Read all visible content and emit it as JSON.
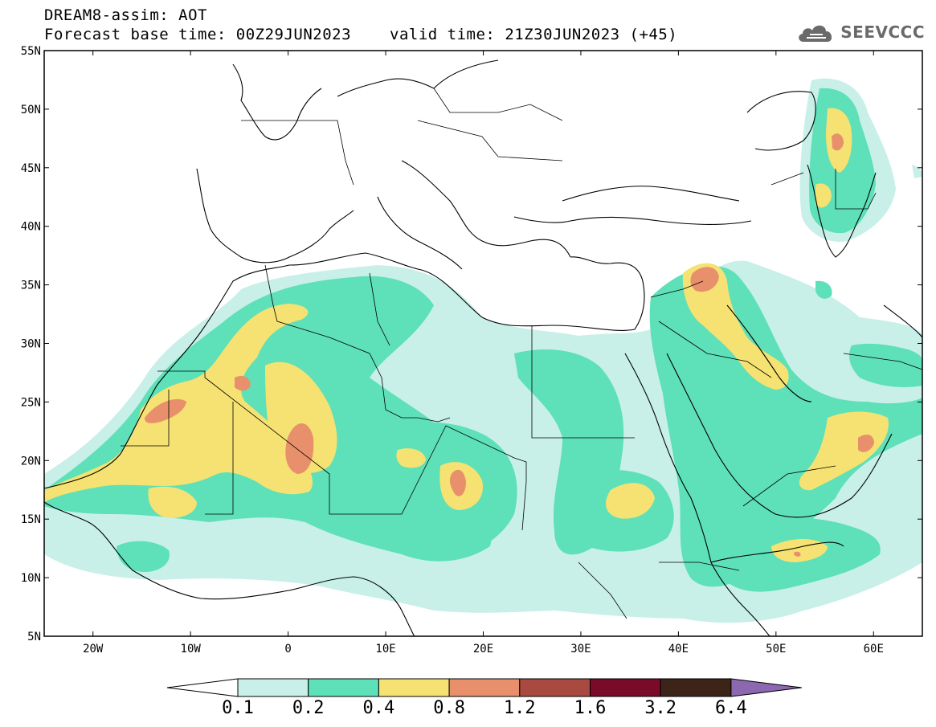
{
  "header": {
    "title": "DREAM8-assim: AOT",
    "base_time_label": "Forecast base time: 00Z29JUN2023",
    "valid_time_label": "valid time: 21Z30JUN2023 (+45)"
  },
  "logo": {
    "text": "SEEVCCC",
    "icon": "cloud-icon",
    "color": "#6a6a6a"
  },
  "map": {
    "lon_range": [
      -25,
      65
    ],
    "lat_range": [
      5,
      55
    ],
    "lat_ticks": [
      "5N",
      "10N",
      "15N",
      "20N",
      "25N",
      "30N",
      "35N",
      "40N",
      "45N",
      "50N",
      "55N"
    ],
    "lon_ticks": [
      "20W",
      "10W",
      "0",
      "10E",
      "20E",
      "30E",
      "40E",
      "50E",
      "60E"
    ]
  },
  "colorbar": {
    "colors": [
      "#ffffff",
      "#c8f0e8",
      "#5ee0b8",
      "#f5e272",
      "#e8906c",
      "#a84a40",
      "#7a0a2a",
      "#3c2418",
      "#8c68b0"
    ],
    "labels": [
      "0.1",
      "0.2",
      "0.4",
      "0.8",
      "1.2",
      "1.6",
      "3.2",
      "6.4"
    ]
  }
}
